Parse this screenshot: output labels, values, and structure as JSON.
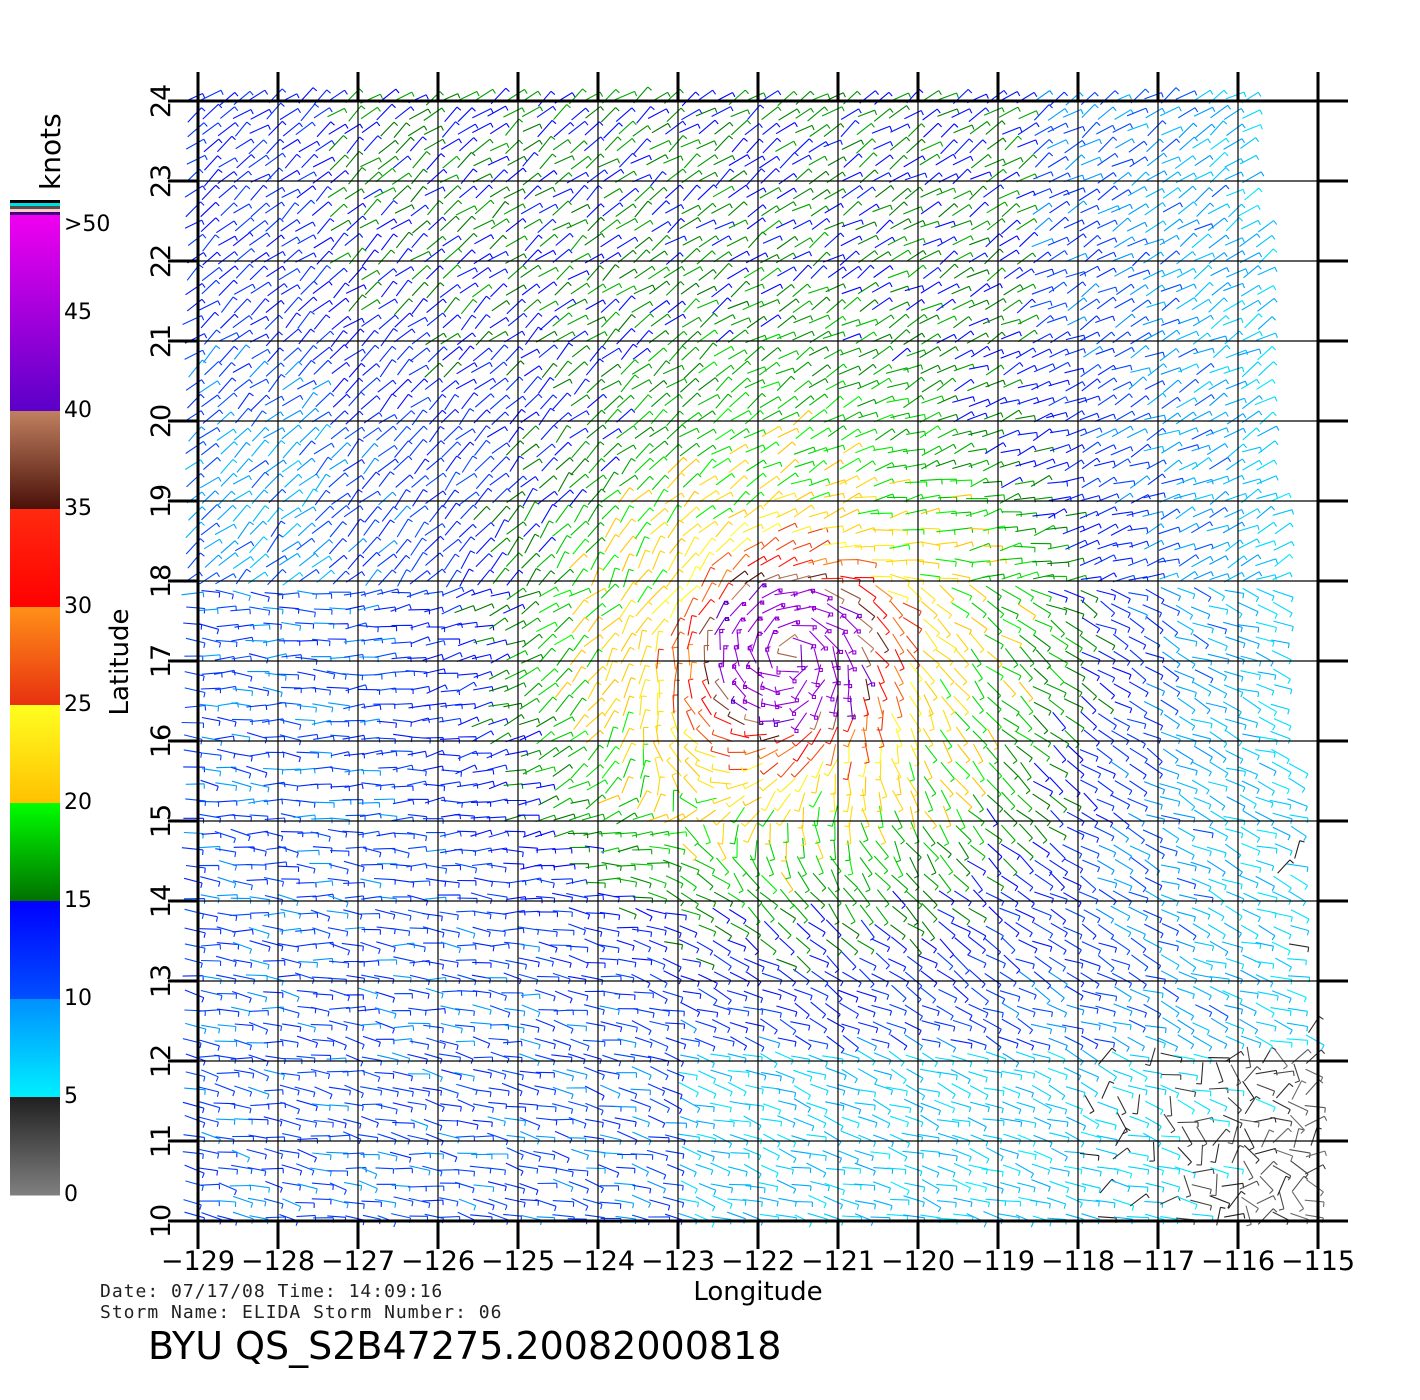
{
  "chart_data": {
    "type": "vector-field",
    "title": "BYU QS_S2B47275.20082000818",
    "xlabel": "Longitude",
    "ylabel": "Latitude",
    "xlim": [
      -129,
      -115
    ],
    "ylim": [
      10,
      24
    ],
    "xticks": [
      "-129",
      "-128",
      "-127",
      "-126",
      "-125",
      "-124",
      "-123",
      "-122",
      "-121",
      "-120",
      "-119",
      "-118",
      "-117",
      "-116",
      "-115"
    ],
    "yticks": [
      "10",
      "11",
      "12",
      "13",
      "14",
      "15",
      "16",
      "17",
      "18",
      "19",
      "20",
      "21",
      "22",
      "23",
      "24"
    ],
    "grid": true,
    "storm_center": {
      "lon": -121.6,
      "lat": 17.1
    },
    "max_speed_knots": 42,
    "colorbar": {
      "unit": "knots",
      "labels": [
        ">50",
        "45",
        "40",
        "35",
        "30",
        "25",
        "20",
        "15",
        "10",
        "5",
        "0"
      ],
      "bands": [
        {
          "range": [
            40,
            50
          ],
          "from": "#5a00c8",
          "to": "#f000f0"
        },
        {
          "range": [
            35,
            40
          ],
          "from": "#4a1008",
          "to": "#c08060"
        },
        {
          "range": [
            30,
            35
          ],
          "from": "#ff0000",
          "to": "#ff2a10"
        },
        {
          "range": [
            25,
            30
          ],
          "from": "#e83010",
          "to": "#ff9018"
        },
        {
          "range": [
            20,
            25
          ],
          "from": "#ffc000",
          "to": "#ffff20"
        },
        {
          "range": [
            15,
            20
          ],
          "from": "#007000",
          "to": "#00ff00"
        },
        {
          "range": [
            10,
            15
          ],
          "from": "#0050ff",
          "to": "#0000ff"
        },
        {
          "range": [
            5,
            10
          ],
          "from": "#00f0ff",
          "to": "#0090ff"
        },
        {
          "range": [
            0,
            5
          ],
          "from": "#808080",
          "to": "#202020"
        }
      ],
      "top_stripes": [
        "#000000",
        "#00e0e0",
        "#505050",
        "#ffc8c8",
        "#400080"
      ]
    }
  },
  "info": {
    "date_line": "Date: 07/17/08   Time: 14:09:16",
    "storm_line": "Storm Name: ELIDA   Storm Number: 06"
  }
}
